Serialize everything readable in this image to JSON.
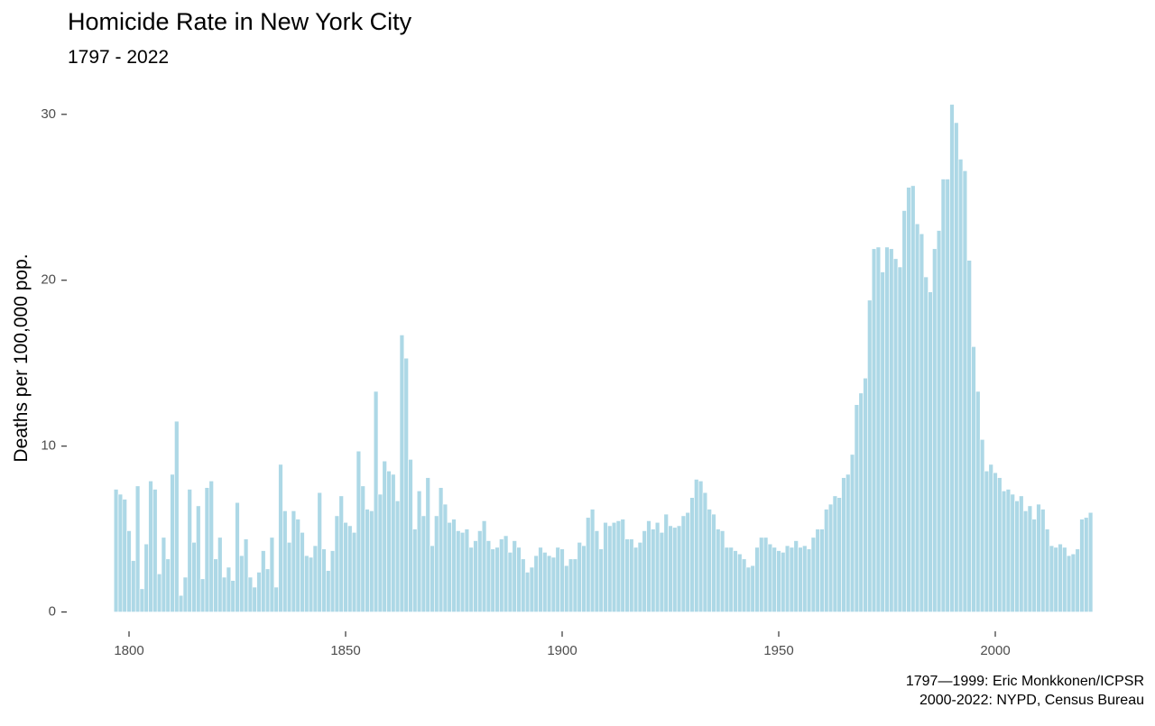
{
  "chart_data": {
    "type": "bar",
    "title": "Homicide Rate in New York City",
    "subtitle": "1797 - 2022",
    "y_label": "Deaths per 100,000 pop.",
    "caption": [
      "1797—1999: Eric Monkkonen/ICPSR",
      "2000-2022: NYPD, Census Bureau"
    ],
    "color": "#add8e6",
    "x": [
      1797,
      1798,
      1799,
      1800,
      1801,
      1802,
      1803,
      1804,
      1805,
      1806,
      1807,
      1808,
      1809,
      1810,
      1811,
      1812,
      1813,
      1814,
      1815,
      1816,
      1817,
      1818,
      1819,
      1820,
      1821,
      1822,
      1823,
      1824,
      1825,
      1826,
      1827,
      1828,
      1829,
      1830,
      1831,
      1832,
      1833,
      1834,
      1835,
      1836,
      1837,
      1838,
      1839,
      1840,
      1841,
      1842,
      1843,
      1844,
      1845,
      1846,
      1847,
      1848,
      1849,
      1850,
      1851,
      1852,
      1853,
      1854,
      1855,
      1856,
      1857,
      1858,
      1859,
      1860,
      1861,
      1862,
      1863,
      1864,
      1865,
      1866,
      1867,
      1868,
      1869,
      1870,
      1871,
      1872,
      1873,
      1874,
      1875,
      1876,
      1877,
      1878,
      1879,
      1880,
      1881,
      1882,
      1883,
      1884,
      1885,
      1886,
      1887,
      1888,
      1889,
      1890,
      1891,
      1892,
      1893,
      1894,
      1895,
      1896,
      1897,
      1898,
      1899,
      1900,
      1901,
      1902,
      1903,
      1904,
      1905,
      1906,
      1907,
      1908,
      1909,
      1910,
      1911,
      1912,
      1913,
      1914,
      1915,
      1916,
      1917,
      1918,
      1919,
      1920,
      1921,
      1922,
      1923,
      1924,
      1925,
      1926,
      1927,
      1928,
      1929,
      1930,
      1931,
      1932,
      1933,
      1934,
      1935,
      1936,
      1937,
      1938,
      1939,
      1940,
      1941,
      1942,
      1943,
      1944,
      1945,
      1946,
      1947,
      1948,
      1949,
      1950,
      1951,
      1952,
      1953,
      1954,
      1955,
      1956,
      1957,
      1958,
      1959,
      1960,
      1961,
      1962,
      1963,
      1964,
      1965,
      1966,
      1967,
      1968,
      1969,
      1970,
      1971,
      1972,
      1973,
      1974,
      1975,
      1976,
      1977,
      1978,
      1979,
      1980,
      1981,
      1982,
      1983,
      1984,
      1985,
      1986,
      1987,
      1988,
      1989,
      1990,
      1991,
      1992,
      1993,
      1994,
      1995,
      1996,
      1997,
      1998,
      1999,
      2000,
      2001,
      2002,
      2003,
      2004,
      2005,
      2006,
      2007,
      2008,
      2009,
      2010,
      2011,
      2012,
      2013,
      2014,
      2015,
      2016,
      2017,
      2018,
      2019,
      2020,
      2021,
      2022
    ],
    "values": [
      7.4,
      7.1,
      6.8,
      4.9,
      3.1,
      7.6,
      1.4,
      4.1,
      7.9,
      7.4,
      2.3,
      4.5,
      3.2,
      8.3,
      11.5,
      1.0,
      2.1,
      7.4,
      4.2,
      6.4,
      2.0,
      7.5,
      7.9,
      3.2,
      4.5,
      2.1,
      2.7,
      1.9,
      6.6,
      3.4,
      4.4,
      2.1,
      1.5,
      2.4,
      3.7,
      2.6,
      4.5,
      1.5,
      8.9,
      6.1,
      4.2,
      6.1,
      5.6,
      4.8,
      3.4,
      3.3,
      4.0,
      7.2,
      3.8,
      2.5,
      3.7,
      5.8,
      7.0,
      5.4,
      5.2,
      4.8,
      9.7,
      7.6,
      6.2,
      6.1,
      13.3,
      7.1,
      9.1,
      8.5,
      8.3,
      6.7,
      16.7,
      15.3,
      9.2,
      5.0,
      7.3,
      5.8,
      8.1,
      4.0,
      5.8,
      7.5,
      6.5,
      5.4,
      5.6,
      4.9,
      4.8,
      5.0,
      3.9,
      4.3,
      4.9,
      5.5,
      4.3,
      3.8,
      3.9,
      4.4,
      4.6,
      3.6,
      4.3,
      3.9,
      3.2,
      2.4,
      2.7,
      3.4,
      3.9,
      3.6,
      3.4,
      3.3,
      3.9,
      3.8,
      2.8,
      3.2,
      3.2,
      4.2,
      4.0,
      5.7,
      6.2,
      4.9,
      3.8,
      5.4,
      5.2,
      5.4,
      5.5,
      5.6,
      4.4,
      4.4,
      3.9,
      4.2,
      4.9,
      5.5,
      5.0,
      5.4,
      4.8,
      5.9,
      5.2,
      5.1,
      5.2,
      5.8,
      6.0,
      6.9,
      8.0,
      7.9,
      7.2,
      6.2,
      5.9,
      5.0,
      4.9,
      3.9,
      3.9,
      3.7,
      3.5,
      3.2,
      2.7,
      2.8,
      3.9,
      4.5,
      4.5,
      4.1,
      3.9,
      3.7,
      3.6,
      4.0,
      3.9,
      4.3,
      3.9,
      4.0,
      3.8,
      4.5,
      5.0,
      5.0,
      6.2,
      6.5,
      7.0,
      6.9,
      8.1,
      8.3,
      9.5,
      12.5,
      13.2,
      14.1,
      18.8,
      21.9,
      22.0,
      20.5,
      22.0,
      21.9,
      21.3,
      20.8,
      24.2,
      25.6,
      25.7,
      23.4,
      22.8,
      20.2,
      19.3,
      21.9,
      23.0,
      26.1,
      26.1,
      30.6,
      29.5,
      27.3,
      26.6,
      21.2,
      16.0,
      13.3,
      10.4,
      8.5,
      8.9,
      8.4,
      8.1,
      7.3,
      7.4,
      7.1,
      6.7,
      7.0,
      6.1,
      6.4,
      5.6,
      6.5,
      6.2,
      5.0,
      4.0,
      3.9,
      4.1,
      3.9,
      3.4,
      3.5,
      3.8,
      5.6,
      5.7,
      6.0
    ],
    "xlim": [
      1790,
      2030
    ],
    "xticks": [
      1800,
      1850,
      1900,
      1950,
      2000
    ],
    "ylim": [
      -1,
      32
    ],
    "yticks": [
      0,
      10,
      20,
      30
    ],
    "grid": false
  }
}
